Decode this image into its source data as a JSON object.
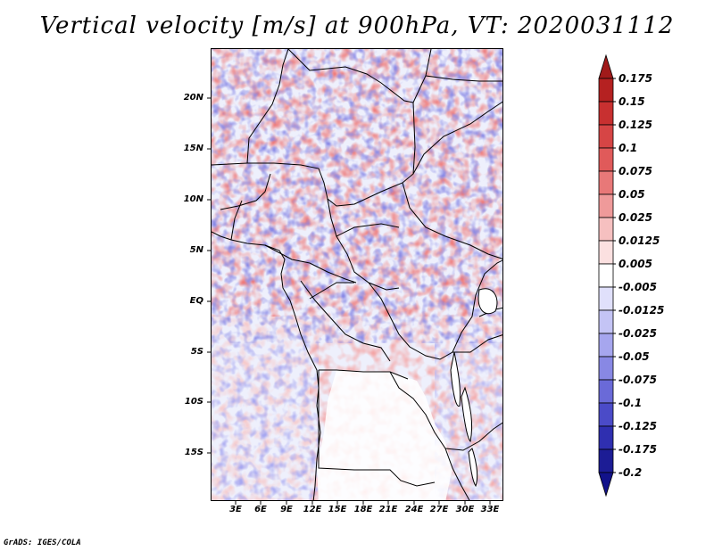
{
  "title": "Vertical velocity [m/s] at 900hPa, VT: 2020031112",
  "credit": "GrADS: IGES/COLA",
  "map": {
    "variable": "vertical velocity",
    "level": "900hPa",
    "lon_range": [
      0,
      34
    ],
    "lat_range": [
      -20,
      25
    ],
    "lat_ticks": [
      "20N",
      "15N",
      "10N",
      "5N",
      "EQ",
      "5S",
      "10S",
      "15S"
    ],
    "lat_values": [
      20,
      15,
      10,
      5,
      0,
      -5,
      -10,
      -15
    ],
    "lon_ticks": [
      "3E",
      "6E",
      "9E",
      "12E",
      "15E",
      "18E",
      "21E",
      "24E",
      "27E",
      "30E",
      "33E"
    ],
    "lon_values": [
      3,
      6,
      9,
      12,
      15,
      18,
      21,
      24,
      27,
      30,
      33
    ]
  },
  "colorbar": {
    "labels": [
      "0.175",
      "0.15",
      "0.125",
      "0.1",
      "0.075",
      "0.05",
      "0.025",
      "0.0125",
      "0.005",
      "-0.005",
      "-0.0125",
      "-0.025",
      "-0.05",
      "-0.075",
      "-0.1",
      "-0.125",
      "-0.175",
      "-0.2"
    ],
    "colors": [
      "#a01a1a",
      "#b52121",
      "#c83030",
      "#d64545",
      "#e05a5a",
      "#e87878",
      "#ef9a9a",
      "#f6c0c0",
      "#fbe0e0",
      "#ffffff",
      "#e0e0fb",
      "#c4c4f5",
      "#a6a6ee",
      "#8888e4",
      "#6a6ad8",
      "#4b4bc8",
      "#2f2fb0",
      "#1c1c95",
      "#12128a"
    ]
  }
}
